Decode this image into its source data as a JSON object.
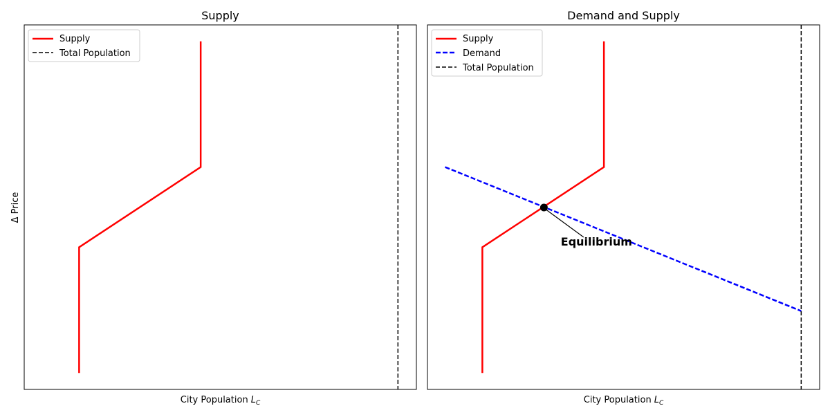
{
  "chart_data": [
    {
      "type": "line",
      "title": "Supply",
      "xlabel": "City Population",
      "xlabel_sub": "C",
      "ylabel": "Δ Price",
      "xlim": [
        0,
        10
      ],
      "ylim": [
        0,
        10
      ],
      "grid": false,
      "legend": "top-left",
      "series": [
        {
          "name": "Supply",
          "color": "#ff0000",
          "style": "solid",
          "points": [
            [
              1.4,
              0.45
            ],
            [
              1.4,
              3.9
            ],
            [
              4.5,
              6.1
            ],
            [
              4.5,
              9.55
            ]
          ]
        }
      ],
      "vlines": [
        {
          "name": "Total Population",
          "x": 9.53,
          "color": "#000000",
          "style": "dashed"
        }
      ]
    },
    {
      "type": "line",
      "title": "Demand and Supply",
      "xlabel": "City Population",
      "xlabel_sub": "C",
      "ylabel": "",
      "xlim": [
        0,
        10
      ],
      "ylim": [
        0,
        10
      ],
      "grid": false,
      "legend": "top-left",
      "series": [
        {
          "name": "Supply",
          "color": "#ff0000",
          "style": "solid",
          "points": [
            [
              1.4,
              0.45
            ],
            [
              1.4,
              3.9
            ],
            [
              4.5,
              6.1
            ],
            [
              4.5,
              9.55
            ]
          ]
        },
        {
          "name": "Demand",
          "color": "#0000ff",
          "style": "dashed",
          "points": [
            [
              0.45,
              6.1
            ],
            [
              9.53,
              2.15
            ]
          ]
        }
      ],
      "vlines": [
        {
          "name": "Total Population",
          "x": 9.53,
          "color": "#000000",
          "style": "dashed"
        }
      ],
      "points": [
        {
          "x": 2.97,
          "y": 4.99,
          "color": "#000000"
        }
      ],
      "annotations": [
        {
          "text": "Equilibrium",
          "x": 2.97,
          "y": 4.99,
          "text_x": 3.4,
          "text_y": 3.95
        }
      ]
    }
  ]
}
